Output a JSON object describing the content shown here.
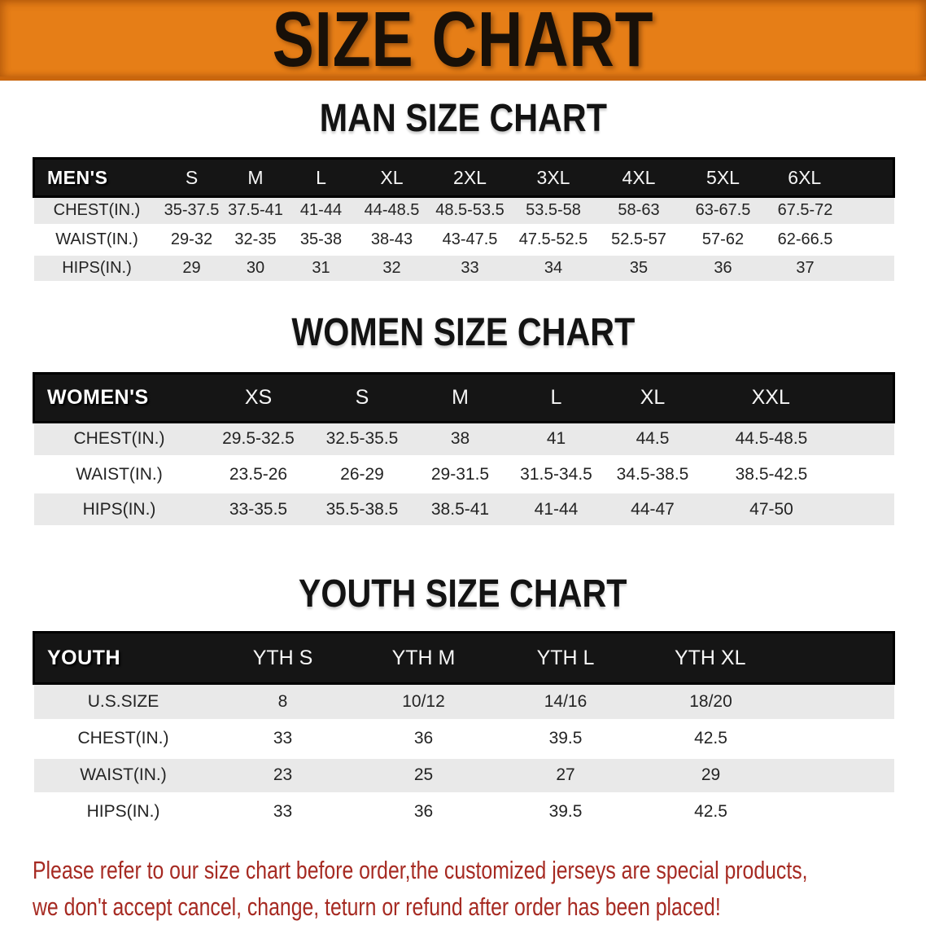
{
  "banner": {
    "title": "SIZE CHART",
    "bg_color": "#E67E17",
    "text_color": "#181008"
  },
  "sections": [
    {
      "id": "men",
      "heading": "MAN SIZE CHART",
      "header_label": "MEN'S",
      "columns": [
        "S",
        "M",
        "L",
        "XL",
        "2XL",
        "3XL",
        "4XL",
        "5XL",
        "6XL"
      ],
      "rows": [
        {
          "label": "CHEST(IN.)",
          "values": [
            "35-37.5",
            "37.5-41",
            "41-44",
            "44-48.5",
            "48.5-53.5",
            "53.5-58",
            "58-63",
            "63-67.5",
            "67.5-72"
          ]
        },
        {
          "label": "WAIST(IN.)",
          "values": [
            "29-32",
            "32-35",
            "35-38",
            "38-43",
            "43-47.5",
            "47.5-52.5",
            "52.5-57",
            "57-62",
            "62-66.5"
          ]
        },
        {
          "label": "HIPS(IN.)",
          "values": [
            "29",
            "30",
            "31",
            "32",
            "33",
            "34",
            "35",
            "36",
            "37"
          ]
        }
      ]
    },
    {
      "id": "women",
      "heading": "WOMEN SIZE CHART",
      "header_label": "WOMEN'S",
      "columns": [
        "XS",
        "S",
        "M",
        "L",
        "XL",
        "XXL"
      ],
      "rows": [
        {
          "label": "CHEST(IN.)",
          "values": [
            "29.5-32.5",
            "32.5-35.5",
            "38",
            "41",
            "44.5",
            "44.5-48.5"
          ]
        },
        {
          "label": "WAIST(IN.)",
          "values": [
            "23.5-26",
            "26-29",
            "29-31.5",
            "31.5-34.5",
            "34.5-38.5",
            "38.5-42.5"
          ]
        },
        {
          "label": "HIPS(IN.)",
          "values": [
            "33-35.5",
            "35.5-38.5",
            "38.5-41",
            "41-44",
            "44-47",
            "47-50"
          ]
        }
      ]
    },
    {
      "id": "youth",
      "heading": "YOUTH SIZE CHART",
      "header_label": "YOUTH",
      "columns": [
        "YTH S",
        "YTH M",
        "YTH L",
        "YTH XL"
      ],
      "rows": [
        {
          "label": "U.S.SIZE",
          "values": [
            "8",
            "10/12",
            "14/16",
            "18/20"
          ]
        },
        {
          "label": "CHEST(IN.)",
          "values": [
            "33",
            "36",
            "39.5",
            "42.5"
          ]
        },
        {
          "label": "WAIST(IN.)",
          "values": [
            "23",
            "25",
            "27",
            "29"
          ]
        },
        {
          "label": "HIPS(IN.)",
          "values": [
            "33",
            "36",
            "39.5",
            "42.5"
          ]
        }
      ]
    }
  ],
  "disclaimer": {
    "color": "#A62A22",
    "lines": [
      "Please refer to our size chart before order,the customized jerseys are special products,",
      "we don't accept cancel, change, teturn or refund after order has been placed!"
    ]
  }
}
